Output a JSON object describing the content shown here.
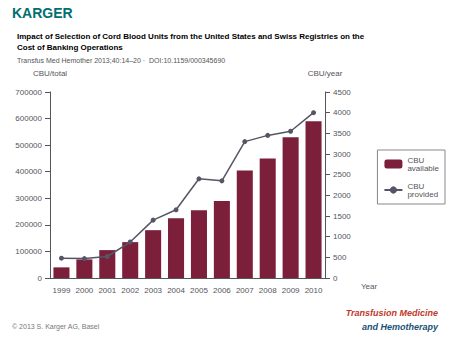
{
  "chart_data": {
    "type": "bar",
    "title": "Impact of Selection of Cord Blood Units from the United States and Swiss Registries on the\nCost of Banking Operations",
    "subtitle": "Transfus Med Hemother 2013;40:14–20 ·  DOI:10.1159/000345690",
    "xlabel": "Year",
    "ylabel": "CBU/total",
    "y2label": "CBU/year",
    "categories": [
      "1999",
      "2000",
      "2001",
      "2002",
      "2003",
      "2004",
      "2005",
      "2006",
      "2007",
      "2008",
      "2009",
      "2010"
    ],
    "series": [
      {
        "name": "CBU\navailable",
        "type": "bar",
        "color": "#7B1F3A",
        "values": [
          40000,
          70000,
          105000,
          135000,
          180000,
          225000,
          255000,
          290000,
          405000,
          450000,
          530000,
          590000
        ]
      },
      {
        "name": "CBU\nprovided",
        "type": "line",
        "axis": "y2",
        "color": "#555566",
        "marker": "circle",
        "values": [
          480,
          470,
          520,
          870,
          1400,
          1650,
          2400,
          2350,
          3300,
          3450,
          3550,
          4000
        ]
      }
    ],
    "ylim": [
      0,
      700000
    ],
    "yticks": [
      0,
      100000,
      200000,
      300000,
      400000,
      500000,
      600000,
      700000
    ],
    "y2lim": [
      0,
      4500
    ],
    "y2ticks": [
      0,
      500,
      1000,
      1500,
      2000,
      2500,
      3000,
      3500,
      4000,
      4500
    ],
    "grid": false,
    "legend": "right",
    "annotations": [
      {
        "text": "KARGER",
        "color": "#007070"
      },
      {
        "text": "© 2013 S. Karger AG, Basel",
        "color": "#777777"
      },
      {
        "text": "Transfusion Medicine",
        "color": "#C0392B"
      },
      {
        "text": "and Hemotherapy",
        "color": "#1A5276"
      }
    ]
  }
}
